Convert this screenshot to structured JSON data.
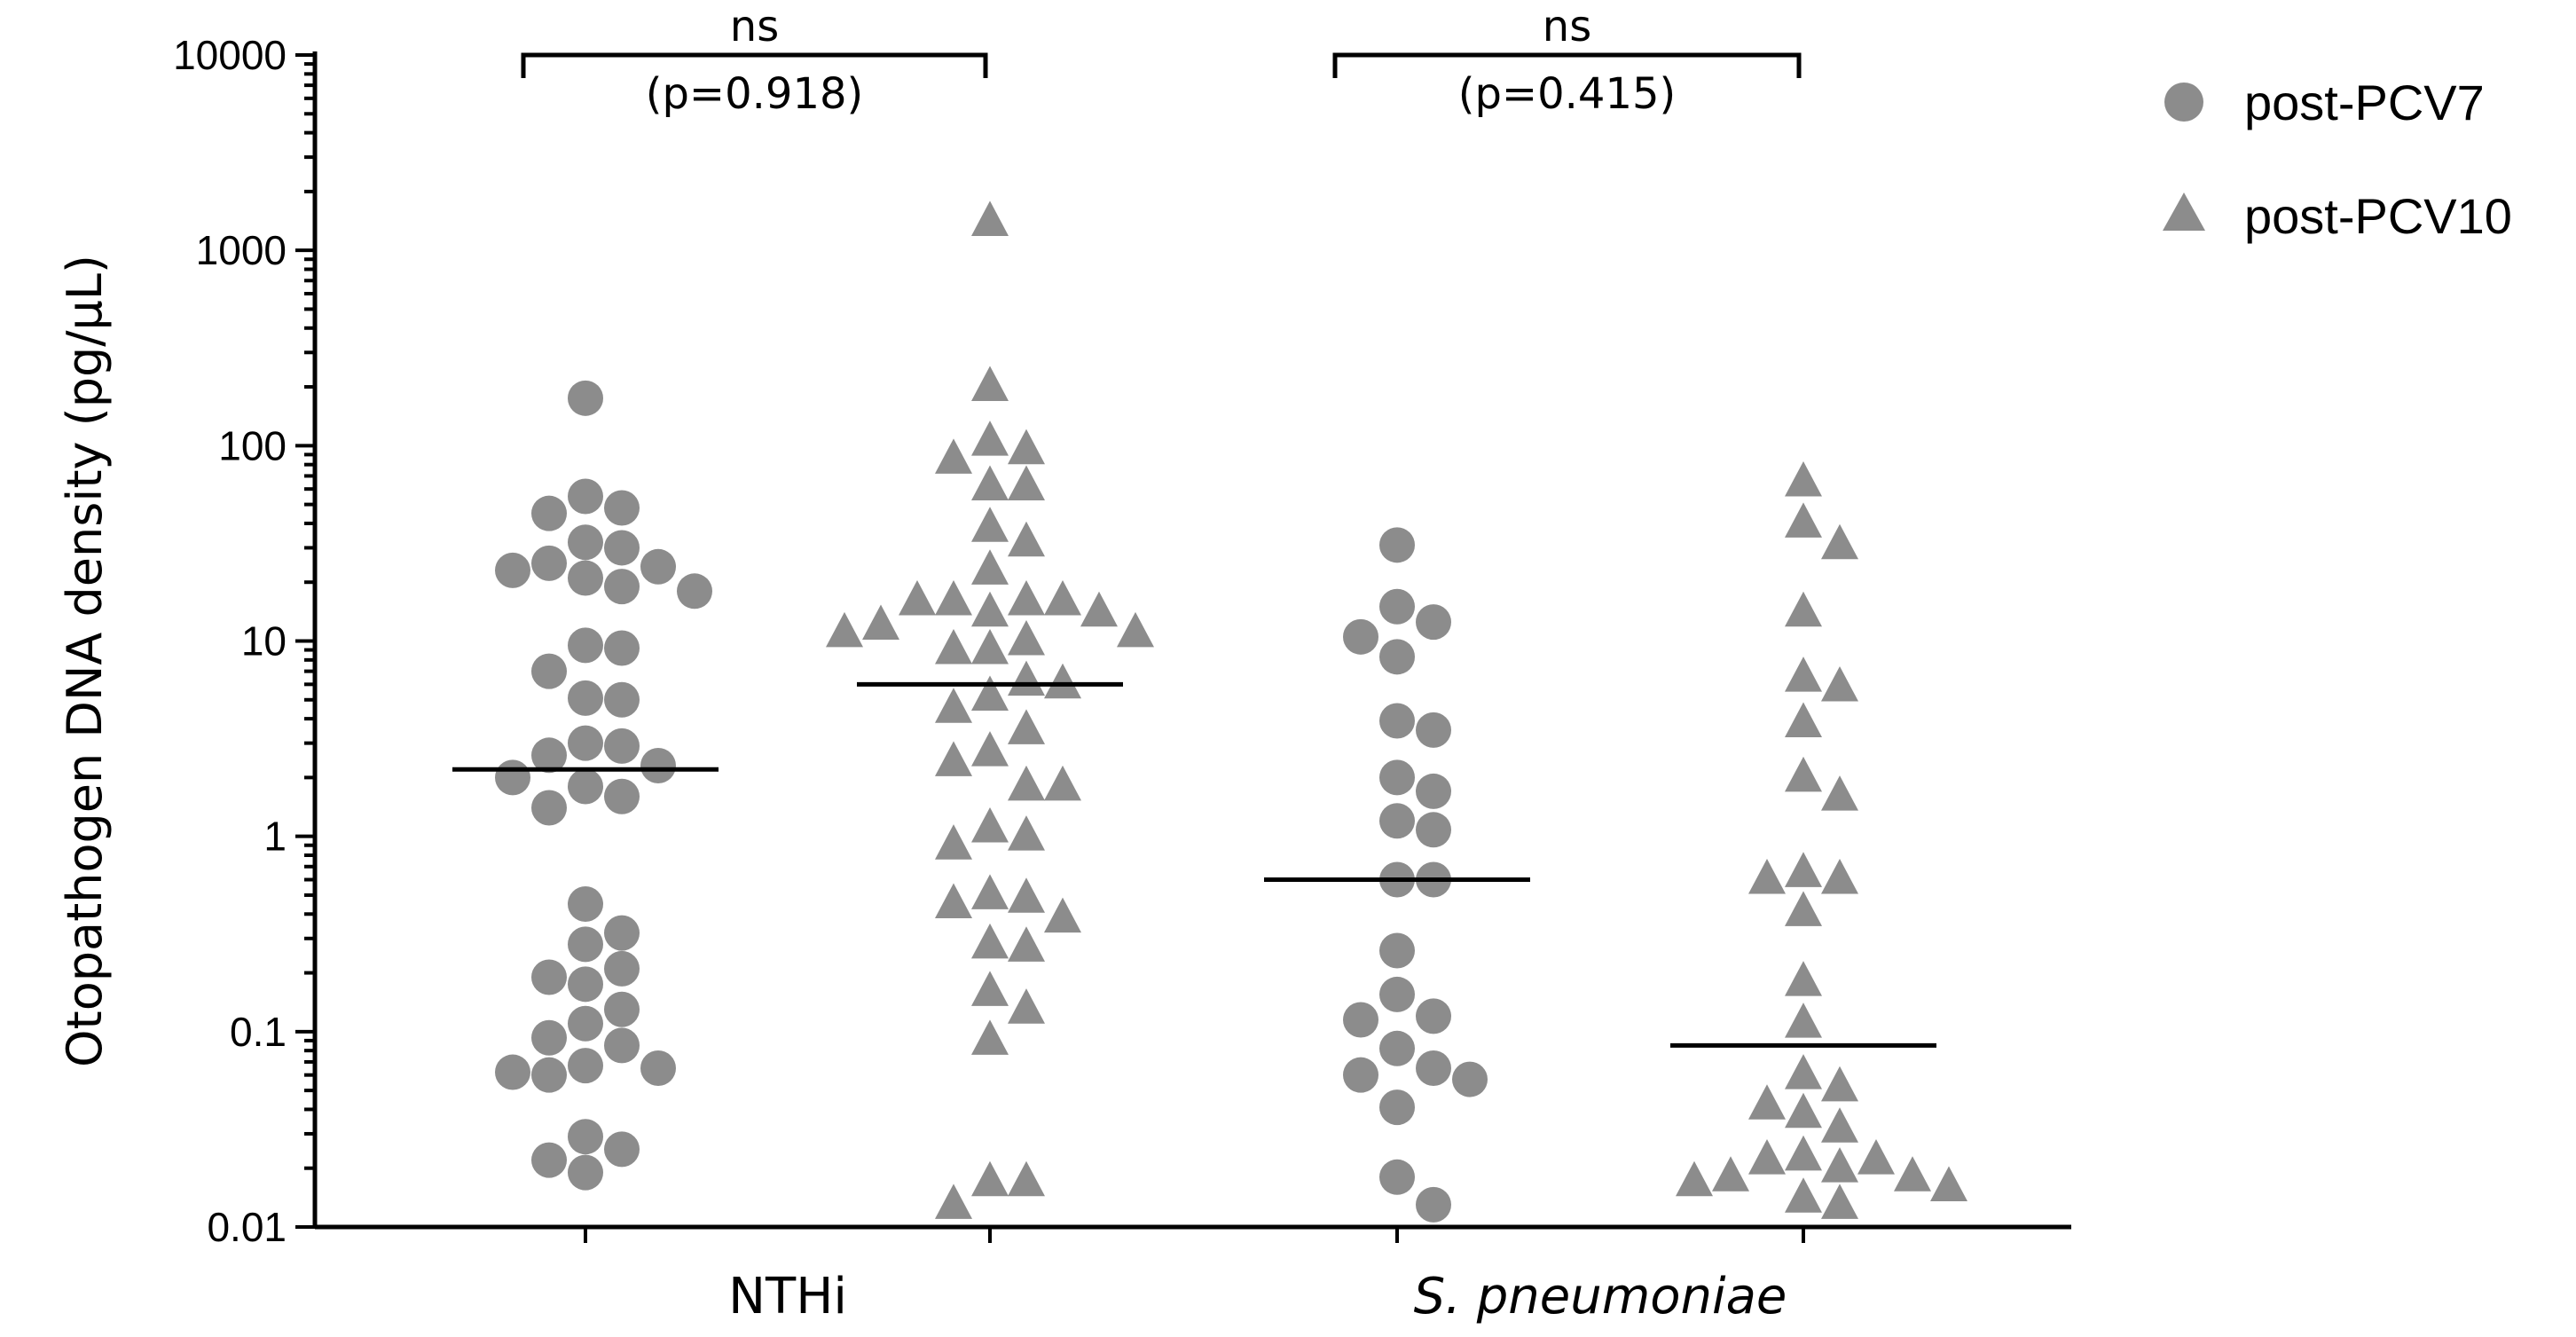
{
  "chart_data": {
    "type": "scatter",
    "title": "",
    "xlabel": "",
    "ylabel": "Otopathogen DNA density  (pg/µL)",
    "yscale": "log",
    "ylim": [
      0.01,
      10000
    ],
    "yticks": [
      "0.01",
      "0.1",
      "1",
      "10",
      "100",
      "1000",
      "10000"
    ],
    "categories": [
      {
        "label": "NTHi",
        "italic": false
      },
      {
        "label": "S. pneumoniae",
        "italic": true
      }
    ],
    "legend": [
      {
        "name": "post-PCV7",
        "marker": "circle"
      },
      {
        "name": "post-PCV10",
        "marker": "triangle"
      }
    ],
    "marker_color": "#8c8c8c",
    "series": [
      {
        "name": "post-PCV7",
        "category": "NTHi",
        "marker": "circle",
        "median": 2.2,
        "values": [
          175,
          55,
          45,
          48,
          30,
          24,
          23,
          19,
          18,
          21,
          25,
          32,
          9.5,
          9.2,
          7,
          5.1,
          5.0,
          3.0,
          2.9,
          2.3,
          1.8,
          1.4,
          1.6,
          2.0,
          2.6,
          0.45,
          0.32,
          0.28,
          0.21,
          0.19,
          0.175,
          0.13,
          0.093,
          0.067,
          0.062,
          0.06,
          0.065,
          0.085,
          0.11,
          0.025,
          0.019,
          0.022,
          0.029
        ]
      },
      {
        "name": "post-PCV10",
        "category": "NTHi",
        "marker": "triangle",
        "median": 6.0,
        "values": [
          1400,
          200,
          95,
          62,
          62,
          85,
          105,
          38,
          32,
          23,
          16,
          16,
          16,
          16,
          14,
          14,
          12,
          11,
          11,
          10,
          9,
          9,
          6.2,
          6,
          5.2,
          4.5,
          3.5,
          2.7,
          2.4,
          1.8,
          1.8,
          1.1,
          1.0,
          0.9,
          0.5,
          0.48,
          0.45,
          0.38,
          0.28,
          0.27,
          0.16,
          0.13,
          0.09,
          0.017,
          0.017,
          0.013
        ]
      },
      {
        "name": "post-PCV7",
        "category": "S. pneumoniae",
        "marker": "circle",
        "median": 0.6,
        "values": [
          31,
          15,
          10.5,
          8.3,
          12.5,
          3.9,
          3.5,
          2.0,
          1.7,
          1.2,
          1.08,
          0.6,
          0.6,
          0.26,
          0.155,
          0.12,
          0.115,
          0.082,
          0.065,
          0.06,
          0.057,
          0.041,
          0.018,
          0.013
        ]
      },
      {
        "name": "post-PCV10",
        "category": "S. pneumoniae",
        "marker": "triangle",
        "median": 0.085,
        "values": [
          65,
          40,
          31,
          14,
          6.5,
          5.8,
          3.8,
          2.0,
          1.6,
          0.65,
          0.6,
          0.6,
          0.41,
          0.18,
          0.11,
          0.06,
          0.052,
          0.042,
          0.038,
          0.032,
          0.023,
          0.022,
          0.022,
          0.02,
          0.018,
          0.018,
          0.017,
          0.016,
          0.014,
          0.013
        ]
      }
    ],
    "comparisons": [
      {
        "category": "NTHi",
        "label": "ns",
        "p_text": "(p=0.918)"
      },
      {
        "category": "S. pneumoniae",
        "label": "ns",
        "p_text": "(p=0.415)"
      }
    ]
  }
}
